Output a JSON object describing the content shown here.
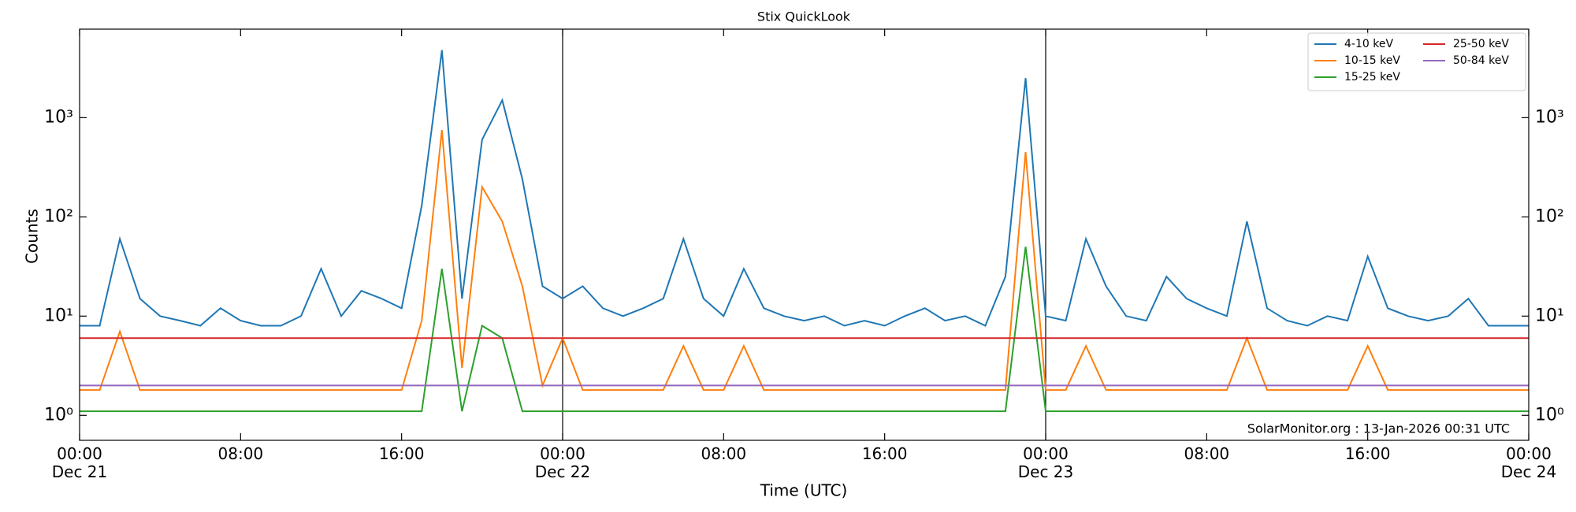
{
  "chart_data": {
    "type": "line",
    "title": "Stix QuickLook",
    "x_label": "Time (UTC)",
    "y_label": "Counts",
    "annotation": "SolarMonitor.org : 13-Jan-2026 00:31 UTC",
    "yscale": "log",
    "legend": "upper right",
    "legend_columns": 2,
    "ylim": [
      0.56,
      7800
    ],
    "yticks": [
      {
        "value": 1,
        "label": "10⁰"
      },
      {
        "value": 10,
        "label": "10¹"
      },
      {
        "value": 100,
        "label": "10²"
      },
      {
        "value": 1000,
        "label": "10³"
      }
    ],
    "xlim": [
      "Dec 21 00:00",
      "Dec 24 00:00"
    ],
    "xticks": [
      {
        "value": "Dec 21 00:00",
        "label": "00:00\nDec 21"
      },
      {
        "value": "Dec 21 08:00",
        "label": "08:00"
      },
      {
        "value": "Dec 21 16:00",
        "label": "16:00"
      },
      {
        "value": "Dec 22 00:00",
        "label": "00:00\nDec 22"
      },
      {
        "value": "Dec 22 08:00",
        "label": "08:00"
      },
      {
        "value": "Dec 22 16:00",
        "label": "16:00"
      },
      {
        "value": "Dec 23 00:00",
        "label": "00:00\nDec 23"
      },
      {
        "value": "Dec 23 08:00",
        "label": "08:00"
      },
      {
        "value": "Dec 23 16:00",
        "label": "16:00"
      },
      {
        "value": "Dec 24 00:00",
        "label": "00:00\nDec 24"
      }
    ],
    "vlines": [
      "Dec 22 00:00",
      "Dec 23 00:00"
    ],
    "x": [
      "Dec 21 00:00",
      "Dec 21 01:00",
      "Dec 21 02:00",
      "Dec 21 03:00",
      "Dec 21 04:00",
      "Dec 21 05:00",
      "Dec 21 06:00",
      "Dec 21 07:00",
      "Dec 21 08:00",
      "Dec 21 09:00",
      "Dec 21 10:00",
      "Dec 21 11:00",
      "Dec 21 12:00",
      "Dec 21 13:00",
      "Dec 21 14:00",
      "Dec 21 15:00",
      "Dec 21 16:00",
      "Dec 21 17:00",
      "Dec 21 18:00",
      "Dec 21 19:00",
      "Dec 21 20:00",
      "Dec 21 21:00",
      "Dec 21 22:00",
      "Dec 21 23:00",
      "Dec 22 00:00",
      "Dec 22 01:00",
      "Dec 22 02:00",
      "Dec 22 03:00",
      "Dec 22 04:00",
      "Dec 22 05:00",
      "Dec 22 06:00",
      "Dec 22 07:00",
      "Dec 22 08:00",
      "Dec 22 09:00",
      "Dec 22 10:00",
      "Dec 22 11:00",
      "Dec 22 12:00",
      "Dec 22 13:00",
      "Dec 22 14:00",
      "Dec 22 15:00",
      "Dec 22 16:00",
      "Dec 22 17:00",
      "Dec 22 18:00",
      "Dec 22 19:00",
      "Dec 22 20:00",
      "Dec 22 21:00",
      "Dec 22 22:00",
      "Dec 22 23:00",
      "Dec 23 00:00",
      "Dec 23 01:00",
      "Dec 23 02:00",
      "Dec 23 03:00",
      "Dec 23 04:00",
      "Dec 23 05:00",
      "Dec 23 06:00",
      "Dec 23 07:00",
      "Dec 23 08:00",
      "Dec 23 09:00",
      "Dec 23 10:00",
      "Dec 23 11:00",
      "Dec 23 12:00",
      "Dec 23 13:00",
      "Dec 23 14:00",
      "Dec 23 15:00",
      "Dec 23 16:00",
      "Dec 23 17:00",
      "Dec 23 18:00",
      "Dec 23 19:00",
      "Dec 23 20:00",
      "Dec 23 21:00",
      "Dec 23 22:00",
      "Dec 23 23:00",
      "Dec 24 00:00"
    ],
    "series": [
      {
        "name": "4-10 keV",
        "color": "#1f77b4",
        "values": [
          8,
          8,
          60,
          15,
          10,
          9,
          8,
          12,
          9,
          8,
          8,
          10,
          30,
          10,
          18,
          15,
          12,
          130,
          4800,
          15,
          600,
          1500,
          240,
          20,
          15,
          20,
          12,
          10,
          12,
          15,
          60,
          15,
          10,
          30,
          12,
          10,
          9,
          10,
          8,
          9,
          8,
          10,
          12,
          9,
          10,
          8,
          25,
          2500,
          10,
          9,
          60,
          20,
          10,
          9,
          25,
          15,
          12,
          10,
          90,
          12,
          9,
          8,
          10,
          9,
          40,
          12,
          10,
          9,
          10,
          15,
          8,
          8,
          8
        ]
      },
      {
        "name": "10-15 keV",
        "color": "#ff7f0e",
        "values": [
          1.8,
          1.8,
          7,
          1.8,
          1.8,
          1.8,
          1.8,
          1.8,
          1.8,
          1.8,
          1.8,
          1.8,
          1.8,
          1.8,
          1.8,
          1.8,
          1.8,
          9,
          750,
          3,
          200,
          90,
          20,
          2,
          6,
          1.8,
          1.8,
          1.8,
          1.8,
          1.8,
          5,
          1.8,
          1.8,
          5,
          1.8,
          1.8,
          1.8,
          1.8,
          1.8,
          1.8,
          1.8,
          1.8,
          1.8,
          1.8,
          1.8,
          1.8,
          1.8,
          450,
          1.8,
          1.8,
          5,
          1.8,
          1.8,
          1.8,
          1.8,
          1.8,
          1.8,
          1.8,
          6,
          1.8,
          1.8,
          1.8,
          1.8,
          1.8,
          5,
          1.8,
          1.8,
          1.8,
          1.8,
          1.8,
          1.8,
          1.8,
          1.8
        ]
      },
      {
        "name": "15-25 keV",
        "color": "#2ca02c",
        "values": [
          1.1,
          1.1,
          1.1,
          1.1,
          1.1,
          1.1,
          1.1,
          1.1,
          1.1,
          1.1,
          1.1,
          1.1,
          1.1,
          1.1,
          1.1,
          1.1,
          1.1,
          1.1,
          30,
          1.1,
          8,
          6,
          1.1,
          1.1,
          1.1,
          1.1,
          1.1,
          1.1,
          1.1,
          1.1,
          1.1,
          1.1,
          1.1,
          1.1,
          1.1,
          1.1,
          1.1,
          1.1,
          1.1,
          1.1,
          1.1,
          1.1,
          1.1,
          1.1,
          1.1,
          1.1,
          1.1,
          50,
          1.1,
          1.1,
          1.1,
          1.1,
          1.1,
          1.1,
          1.1,
          1.1,
          1.1,
          1.1,
          1.1,
          1.1,
          1.1,
          1.1,
          1.1,
          1.1,
          1.1,
          1.1,
          1.1,
          1.1,
          1.1,
          1.1,
          1.1,
          1.1,
          1.1
        ]
      },
      {
        "name": "25-50 keV",
        "color": "#d62728",
        "values": [
          6,
          6,
          6,
          6,
          6,
          6,
          6,
          6,
          6,
          6,
          6,
          6,
          6,
          6,
          6,
          6,
          6,
          6,
          6,
          6,
          6,
          6,
          6,
          6,
          6,
          6,
          6,
          6,
          6,
          6,
          6,
          6,
          6,
          6,
          6,
          6,
          6,
          6,
          6,
          6,
          6,
          6,
          6,
          6,
          6,
          6,
          6,
          6,
          6,
          6,
          6,
          6,
          6,
          6,
          6,
          6,
          6,
          6,
          6,
          6,
          6,
          6,
          6,
          6,
          6,
          6,
          6,
          6,
          6,
          6,
          6,
          6,
          6
        ]
      },
      {
        "name": "50-84 keV",
        "color": "#9467bd",
        "values": [
          2,
          2,
          2,
          2,
          2,
          2,
          2,
          2,
          2,
          2,
          2,
          2,
          2,
          2,
          2,
          2,
          2,
          2,
          2,
          2,
          2,
          2,
          2,
          2,
          2,
          2,
          2,
          2,
          2,
          2,
          2,
          2,
          2,
          2,
          2,
          2,
          2,
          2,
          2,
          2,
          2,
          2,
          2,
          2,
          2,
          2,
          2,
          2,
          2,
          2,
          2,
          2,
          2,
          2,
          2,
          2,
          2,
          2,
          2,
          2,
          2,
          2,
          2,
          2,
          2,
          2,
          2,
          2,
          2,
          2,
          2,
          2,
          2
        ]
      }
    ]
  }
}
